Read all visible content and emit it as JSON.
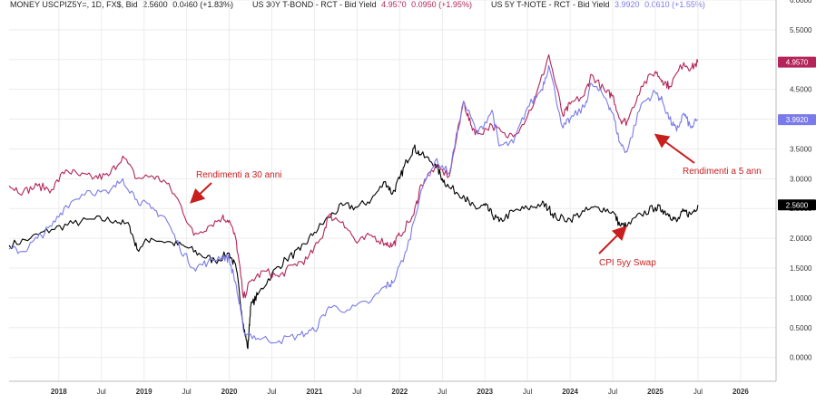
{
  "legend": {
    "s1_label": "MONEY USCPIZ5Y=, 1D, FX$, Bid",
    "s1_value": "2.5600",
    "s1_change": "0.0460 (+1.83%)",
    "s2_label": "US 30Y T-BOND - RCT - Bid Yield",
    "s2_value": "4.9570",
    "s2_change": "0.0950 (+1.95%)",
    "s3_label": "US 5Y T-NOTE - RCT - Bid Yield",
    "s3_value": "3.9920",
    "s3_change": "0.0610 (+1.55%)"
  },
  "chart_data": {
    "type": "line",
    "xlim": [
      "2017-06",
      "2026-06"
    ],
    "ylim": [
      -0.4,
      6.0
    ],
    "grid": true,
    "y_ticks": [
      "0.0000",
      "0.5000",
      "1.0000",
      "1.5000",
      "2.0000",
      "2.5000",
      "3.0000",
      "3.5000",
      "4.0000",
      "4.5000",
      "5.0000",
      "5.5000",
      "6.0000"
    ],
    "x_ticks": [
      {
        "label": "2018",
        "date": "2018-01"
      },
      {
        "label": "Jul",
        "date": "2018-07"
      },
      {
        "label": "2019",
        "date": "2019-01"
      },
      {
        "label": "Jul",
        "date": "2019-07"
      },
      {
        "label": "2020",
        "date": "2020-01"
      },
      {
        "label": "Jul",
        "date": "2020-07"
      },
      {
        "label": "2021",
        "date": "2021-01"
      },
      {
        "label": "Jul",
        "date": "2021-07"
      },
      {
        "label": "2022",
        "date": "2022-01"
      },
      {
        "label": "Jul",
        "date": "2022-07"
      },
      {
        "label": "2023",
        "date": "2023-01"
      },
      {
        "label": "Jul",
        "date": "2023-07"
      },
      {
        "label": "2024",
        "date": "2024-01"
      },
      {
        "label": "Jul",
        "date": "2024-07"
      },
      {
        "label": "2025",
        "date": "2025-01"
      },
      {
        "label": "Jul",
        "date": "2025-07"
      },
      {
        "label": "2026",
        "date": "2026-01"
      }
    ],
    "series": [
      {
        "name": "MONEY USCPIZ5Y=, 1D, FX$, Bid",
        "color": "#000000",
        "last_label": "2.5600",
        "points": [
          [
            "2017-06",
            1.88
          ],
          [
            "2017-09",
            2.0
          ],
          [
            "2017-12",
            2.15
          ],
          [
            "2018-03",
            2.25
          ],
          [
            "2018-06",
            2.32
          ],
          [
            "2018-09",
            2.3
          ],
          [
            "2018-11",
            2.2
          ],
          [
            "2018-12",
            1.82
          ],
          [
            "2019-02",
            2.0
          ],
          [
            "2019-05",
            1.92
          ],
          [
            "2019-07",
            1.85
          ],
          [
            "2019-09",
            1.72
          ],
          [
            "2019-11",
            1.62
          ],
          [
            "2020-01",
            1.75
          ],
          [
            "2020-02",
            1.48
          ],
          [
            "2020-03",
            0.55
          ],
          [
            "2020-03-20",
            0.15
          ],
          [
            "2020-04",
            0.85
          ],
          [
            "2020-05",
            1.05
          ],
          [
            "2020-07",
            1.4
          ],
          [
            "2020-09",
            1.65
          ],
          [
            "2020-11",
            1.8
          ],
          [
            "2021-01",
            2.1
          ],
          [
            "2021-03",
            2.35
          ],
          [
            "2021-05",
            2.55
          ],
          [
            "2021-07",
            2.52
          ],
          [
            "2021-09",
            2.65
          ],
          [
            "2021-11",
            2.95
          ],
          [
            "2021-12",
            2.75
          ],
          [
            "2022-01",
            3.0
          ],
          [
            "2022-02",
            3.3
          ],
          [
            "2022-03",
            3.52
          ],
          [
            "2022-04",
            3.4
          ],
          [
            "2022-06",
            3.25
          ],
          [
            "2022-07",
            3.0
          ],
          [
            "2022-08",
            2.85
          ],
          [
            "2022-10",
            2.72
          ],
          [
            "2022-11",
            2.55
          ],
          [
            "2022-12",
            2.5
          ],
          [
            "2023-01",
            2.55
          ],
          [
            "2023-02",
            2.4
          ],
          [
            "2023-03",
            2.28
          ],
          [
            "2023-05",
            2.45
          ],
          [
            "2023-07",
            2.5
          ],
          [
            "2023-09",
            2.58
          ],
          [
            "2023-10",
            2.5
          ],
          [
            "2023-11",
            2.35
          ],
          [
            "2024-01",
            2.32
          ],
          [
            "2024-03",
            2.45
          ],
          [
            "2024-05",
            2.52
          ],
          [
            "2024-07",
            2.45
          ],
          [
            "2024-08",
            2.22
          ],
          [
            "2024-09",
            2.2
          ],
          [
            "2024-11",
            2.4
          ],
          [
            "2025-01",
            2.52
          ],
          [
            "2025-02",
            2.48
          ],
          [
            "2025-03",
            2.4
          ],
          [
            "2025-04",
            2.28
          ],
          [
            "2025-05",
            2.45
          ],
          [
            "2025-06",
            2.4
          ],
          [
            "2025-07",
            2.56
          ]
        ]
      },
      {
        "name": "US 30Y T-BOND - RCT - Bid Yield",
        "color": "#b4245a",
        "last_label": "4.9570",
        "points": [
          [
            "2017-06",
            2.88
          ],
          [
            "2017-08",
            2.78
          ],
          [
            "2017-10",
            2.88
          ],
          [
            "2017-12",
            2.82
          ],
          [
            "2018-02",
            3.15
          ],
          [
            "2018-04",
            3.05
          ],
          [
            "2018-06",
            3.02
          ],
          [
            "2018-08",
            3.05
          ],
          [
            "2018-10",
            3.38
          ],
          [
            "2018-12",
            3.0
          ],
          [
            "2019-02",
            3.05
          ],
          [
            "2019-04",
            2.95
          ],
          [
            "2019-06",
            2.6
          ],
          [
            "2019-08",
            2.05
          ],
          [
            "2019-10",
            2.2
          ],
          [
            "2019-12",
            2.35
          ],
          [
            "2020-01",
            2.3
          ],
          [
            "2020-02",
            1.95
          ],
          [
            "2020-03",
            1.0
          ],
          [
            "2020-04",
            1.28
          ],
          [
            "2020-06",
            1.45
          ],
          [
            "2020-08",
            1.35
          ],
          [
            "2020-10",
            1.55
          ],
          [
            "2020-12",
            1.65
          ],
          [
            "2021-02",
            2.0
          ],
          [
            "2021-03",
            2.38
          ],
          [
            "2021-05",
            2.28
          ],
          [
            "2021-07",
            1.92
          ],
          [
            "2021-09",
            2.05
          ],
          [
            "2021-11",
            1.92
          ],
          [
            "2021-12",
            1.88
          ],
          [
            "2022-01",
            2.05
          ],
          [
            "2022-03",
            2.4
          ],
          [
            "2022-04",
            2.9
          ],
          [
            "2022-06",
            3.2
          ],
          [
            "2022-08",
            3.05
          ],
          [
            "2022-10",
            4.3
          ],
          [
            "2022-11",
            3.9
          ],
          [
            "2022-12",
            3.75
          ],
          [
            "2023-02",
            3.9
          ],
          [
            "2023-04",
            3.7
          ],
          [
            "2023-06",
            3.85
          ],
          [
            "2023-08",
            4.3
          ],
          [
            "2023-10",
            5.08
          ],
          [
            "2023-12",
            4.05
          ],
          [
            "2024-01",
            4.25
          ],
          [
            "2024-03",
            4.4
          ],
          [
            "2024-04",
            4.75
          ],
          [
            "2024-06",
            4.45
          ],
          [
            "2024-07",
            4.4
          ],
          [
            "2024-08",
            4.0
          ],
          [
            "2024-09",
            3.95
          ],
          [
            "2024-11",
            4.55
          ],
          [
            "2025-01",
            4.8
          ],
          [
            "2025-02",
            4.65
          ],
          [
            "2025-03",
            4.55
          ],
          [
            "2025-05",
            4.95
          ],
          [
            "2025-06",
            4.85
          ],
          [
            "2025-07",
            4.957
          ]
        ]
      },
      {
        "name": "US 5Y T-NOTE - RCT - Bid Yield",
        "color": "#7a7aea",
        "last_label": "3.9920",
        "points": [
          [
            "2017-06",
            1.82
          ],
          [
            "2017-08",
            1.78
          ],
          [
            "2017-10",
            2.0
          ],
          [
            "2017-12",
            2.2
          ],
          [
            "2018-02",
            2.55
          ],
          [
            "2018-05",
            2.8
          ],
          [
            "2018-08",
            2.75
          ],
          [
            "2018-10",
            3.0
          ],
          [
            "2018-12",
            2.65
          ],
          [
            "2019-02",
            2.5
          ],
          [
            "2019-04",
            2.35
          ],
          [
            "2019-06",
            1.85
          ],
          [
            "2019-08",
            1.5
          ],
          [
            "2019-10",
            1.6
          ],
          [
            "2019-12",
            1.7
          ],
          [
            "2020-01",
            1.65
          ],
          [
            "2020-02",
            1.2
          ],
          [
            "2020-03",
            0.45
          ],
          [
            "2020-05",
            0.32
          ],
          [
            "2020-08",
            0.28
          ],
          [
            "2020-11",
            0.38
          ],
          [
            "2021-01",
            0.45
          ],
          [
            "2021-03",
            0.85
          ],
          [
            "2021-06",
            0.8
          ],
          [
            "2021-09",
            0.95
          ],
          [
            "2021-11",
            1.2
          ],
          [
            "2021-12",
            1.25
          ],
          [
            "2022-02",
            1.8
          ],
          [
            "2022-04",
            2.8
          ],
          [
            "2022-06",
            3.3
          ],
          [
            "2022-08",
            3.1
          ],
          [
            "2022-10",
            4.3
          ],
          [
            "2022-12",
            3.75
          ],
          [
            "2023-02",
            4.15
          ],
          [
            "2023-03",
            3.55
          ],
          [
            "2023-05",
            3.6
          ],
          [
            "2023-07",
            4.2
          ],
          [
            "2023-09",
            4.5
          ],
          [
            "2023-10",
            4.9
          ],
          [
            "2023-12",
            3.85
          ],
          [
            "2024-01",
            4.0
          ],
          [
            "2024-03",
            4.2
          ],
          [
            "2024-04",
            4.6
          ],
          [
            "2024-06",
            4.35
          ],
          [
            "2024-07",
            4.1
          ],
          [
            "2024-08",
            3.6
          ],
          [
            "2024-09",
            3.45
          ],
          [
            "2024-11",
            4.25
          ],
          [
            "2025-01",
            4.45
          ],
          [
            "2025-02",
            4.3
          ],
          [
            "2025-03",
            4.0
          ],
          [
            "2025-04",
            3.8
          ],
          [
            "2025-05",
            4.1
          ],
          [
            "2025-06",
            3.85
          ],
          [
            "2025-07",
            3.992
          ]
        ]
      }
    ],
    "annotations": [
      {
        "text": "Rendimenti a 30 anni",
        "color": "#c81e1e"
      },
      {
        "text": "Rendimenti a 5 ann",
        "color": "#c81e1e"
      },
      {
        "text": "CPI 5yy Swap",
        "color": "#c81e1e"
      }
    ]
  }
}
